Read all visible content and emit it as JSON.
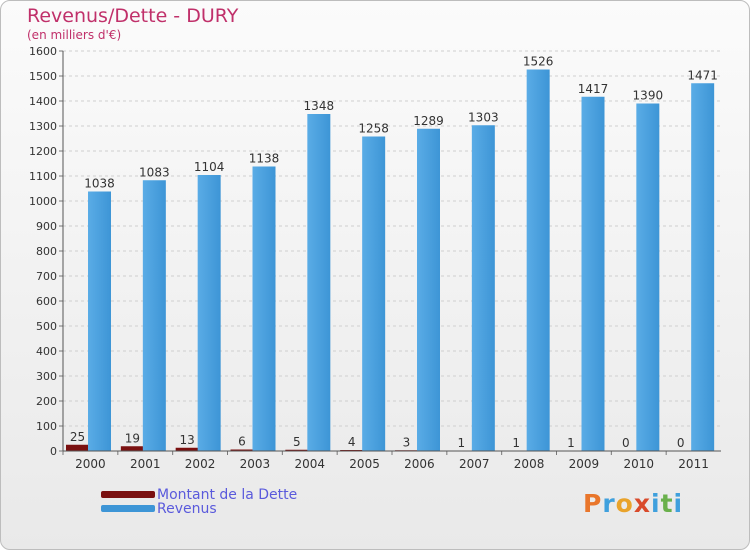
{
  "colors": {
    "title": "#c0306a",
    "dette": "#7a1010",
    "revenus": "#3d95d6",
    "revenus_light": "#5aace6",
    "grid": "#cfcfcf",
    "legend_text": "#5a5adc"
  },
  "chart_data": {
    "type": "bar",
    "title": "Revenus/Dette - DURY",
    "subtitle": "(en milliers d'€)",
    "xlabel": "",
    "ylabel": "",
    "ylim": [
      0,
      1600
    ],
    "yticks": [
      0,
      100,
      200,
      300,
      400,
      500,
      600,
      700,
      800,
      900,
      1000,
      1100,
      1200,
      1300,
      1400,
      1500,
      1600
    ],
    "grid": true,
    "categories": [
      "2000",
      "2001",
      "2002",
      "2003",
      "2004",
      "2005",
      "2006",
      "2007",
      "2008",
      "2009",
      "2010",
      "2011"
    ],
    "series": [
      {
        "name": "Montant de la Dette",
        "values": [
          25,
          19,
          13,
          6,
          5,
          4,
          3,
          1,
          1,
          1,
          0,
          0
        ]
      },
      {
        "name": "Revenus",
        "values": [
          1038,
          1083,
          1104,
          1138,
          1348,
          1258,
          1289,
          1303,
          1526,
          1417,
          1390,
          1471
        ]
      }
    ]
  },
  "logo": {
    "letters": [
      "P",
      "r",
      "o",
      "x",
      "i",
      "t",
      "i"
    ]
  }
}
